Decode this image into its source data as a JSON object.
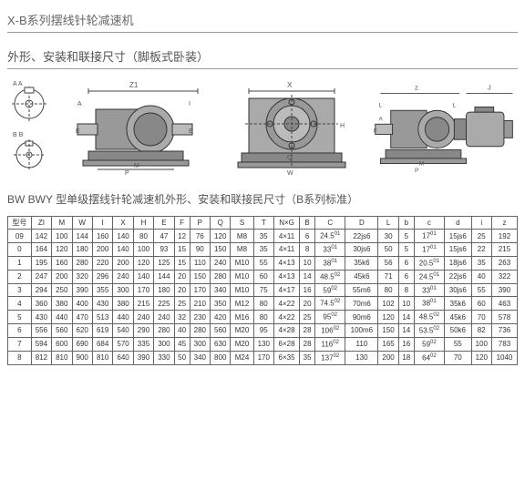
{
  "header": {
    "title": "X-B系列摆线针轮减速机"
  },
  "section1": {
    "title": "外形、安装和联接尺寸（脚板式卧装）"
  },
  "section2": {
    "title": "BW BWY 型单级摆线针轮减速机外形、安装和联接民尺寸（B系列标准）"
  },
  "diagram_labels": {
    "d1_top": "A A",
    "d1_bot": "B B",
    "d2_z1": "Z1",
    "d3_x": "X",
    "d4_z": "z.",
    "d5_j": "J"
  },
  "table": {
    "columns": [
      "型号",
      "ZI",
      "M",
      "W",
      "I",
      "X",
      "H",
      "E",
      "F",
      "P",
      "Q",
      "S",
      "T",
      "N×G",
      "B",
      "C",
      "D",
      "L",
      "b",
      "c",
      "d",
      "i",
      "z"
    ],
    "rows": [
      [
        "09",
        "142",
        "100",
        "144",
        "160",
        "140",
        "80",
        "47",
        "12",
        "76",
        "120",
        "M8",
        "35",
        "4×11",
        "6",
        "24.5",
        "22js6",
        "30",
        "5",
        "17",
        "15js6",
        "25",
        "192"
      ],
      [
        "0",
        "164",
        "120",
        "180",
        "200",
        "140",
        "100",
        "93",
        "15",
        "90",
        "150",
        "M8",
        "35",
        "4×11",
        "8",
        "33",
        "30js6",
        "50",
        "5",
        "17",
        "15js6",
        "22",
        "215"
      ],
      [
        "1",
        "195",
        "160",
        "280",
        "220",
        "200",
        "120",
        "125",
        "15",
        "110",
        "240",
        "M10",
        "55",
        "4×13",
        "10",
        "38",
        "35k6",
        "56",
        "6",
        "20.5",
        "18js6",
        "35",
        "263"
      ],
      [
        "2",
        "247",
        "200",
        "320",
        "296",
        "240",
        "140",
        "144",
        "20",
        "150",
        "280",
        "M10",
        "60",
        "4×13",
        "14",
        "48.5",
        "45k6",
        "71",
        "6",
        "24.5",
        "22js6",
        "40",
        "322"
      ],
      [
        "3",
        "294",
        "250",
        "390",
        "355",
        "300",
        "170",
        "180",
        "20",
        "170",
        "340",
        "M10",
        "75",
        "4×17",
        "16",
        "59",
        "55m6",
        "80",
        "8",
        "33",
        "30js6",
        "55",
        "390"
      ],
      [
        "4",
        "360",
        "380",
        "400",
        "430",
        "380",
        "215",
        "225",
        "25",
        "210",
        "350",
        "M12",
        "80",
        "4×22",
        "20",
        "74.5",
        "70m6",
        "102",
        "10",
        "38",
        "35k6",
        "60",
        "463"
      ],
      [
        "5",
        "430",
        "440",
        "470",
        "513",
        "440",
        "240",
        "240",
        "32",
        "230",
        "420",
        "M16",
        "80",
        "4×22",
        "25",
        "95",
        "90m6",
        "120",
        "14",
        "48.5",
        "45k6",
        "70",
        "578"
      ],
      [
        "6",
        "556",
        "560",
        "620",
        "619",
        "540",
        "290",
        "280",
        "40",
        "280",
        "560",
        "M20",
        "95",
        "4×28",
        "28",
        "106",
        "100m6",
        "150",
        "14",
        "53.5",
        "50k6",
        "82",
        "736"
      ],
      [
        "7",
        "594",
        "600",
        "690",
        "684",
        "570",
        "335",
        "300",
        "45",
        "300",
        "630",
        "M20",
        "130",
        "6×28",
        "28",
        "116",
        "110",
        "165",
        "16",
        "59",
        "55",
        "100",
        "783"
      ],
      [
        "8",
        "812",
        "810",
        "900",
        "810",
        "640",
        "390",
        "330",
        "50",
        "340",
        "800",
        "M24",
        "170",
        "6×35",
        "35",
        "137",
        "130",
        "200",
        "18",
        "64",
        "70",
        "120",
        "1040"
      ]
    ],
    "sup_cols": {
      "C": "01",
      "D": "",
      "c": "01"
    }
  },
  "colors": {
    "stroke": "#555",
    "fill": "#888",
    "bg": "#eee"
  }
}
